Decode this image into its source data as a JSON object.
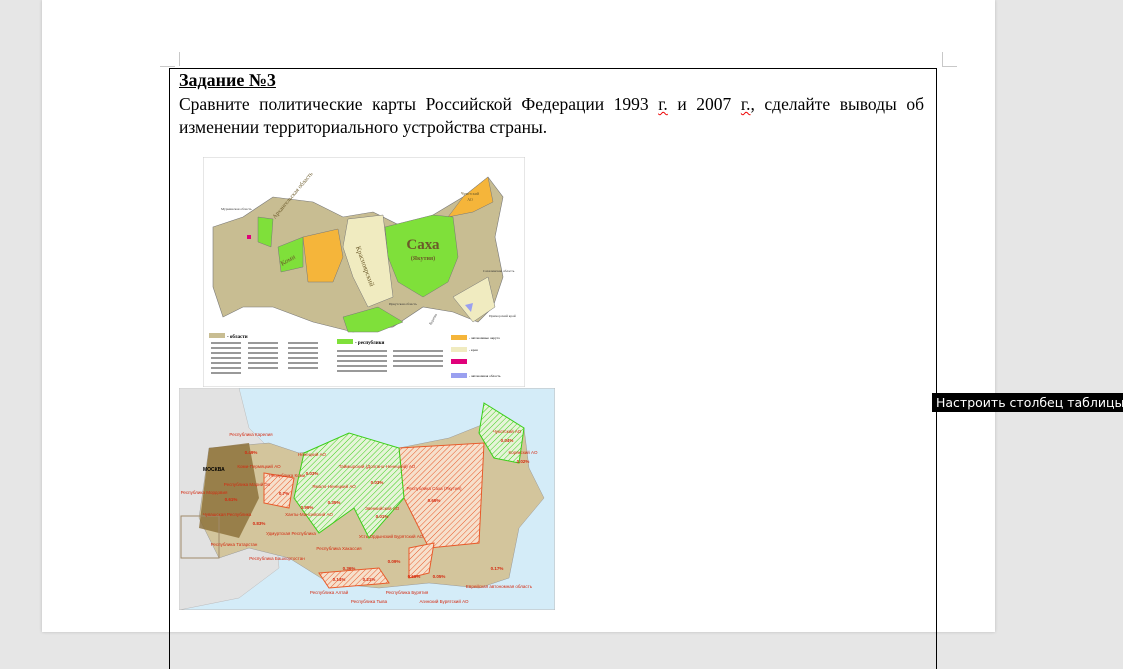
{
  "document": {
    "task_title": "Задание  №3",
    "task_text_1": "Сравните политические карты  Российской Федерации 1993  ",
    "g1": "г.",
    "task_text_2": " и 2007  ",
    "g2": "г.",
    "task_text_3": ", сделайте выводы об изменении территориального устройства  страны."
  },
  "map1993": {
    "labels": {
      "sakha": "Саха",
      "yakutia": "(Якутия)",
      "krasnoyarsk": "Красноярский",
      "krai": "край",
      "arkhangelsk": "Архангельская область",
      "komi": "Коми",
      "chukotka": "Чукотский",
      "ao": "АО",
      "murmansk": "Мурманская область",
      "irkutsk": "Иркутская область",
      "buryatia": "Бурятия",
      "primorsky": "Приморский край",
      "sakhalin": "Сахалинская область"
    },
    "legend": {
      "oblasti": "- области",
      "republics": "- республики",
      "aok": "- автономные округа",
      "krai": "- края",
      "ao": "- автономная область"
    },
    "colors": {
      "oblast": "#c8bd92",
      "republic": "#7fe03a",
      "okrug": "#f5b53a",
      "krai": "#f0ebc0",
      "ao": "#9aa0f0",
      "federal_city": "#e0007a"
    }
  },
  "map2007": {
    "labels": [
      {
        "name": "Республика Карелия",
        "value": "0.49%"
      },
      {
        "name": "Ненецкий АО",
        "value": "0.03%"
      },
      {
        "name": "Коми-Пермяцкий АО",
        "value": ""
      },
      {
        "name": "Республика Коми",
        "value": "0.7%"
      },
      {
        "name": "Таймырский (Долгано-Ненецкий) АО",
        "value": "0.03%"
      },
      {
        "name": "Ямало-Ненецкий АО",
        "value": "0.35%"
      },
      {
        "name": "Республика Саха (Якутия)",
        "value": "0.65%"
      },
      {
        "name": "Чукотский АО",
        "value": "0.04%"
      },
      {
        "name": "Корякский АО",
        "value": "0.02%"
      },
      {
        "name": "Ханты-Мансийский АО",
        "value": "0.99%"
      },
      {
        "name": "Эвенкийский АО",
        "value": "0.01%"
      },
      {
        "name": "Республика Хакассия",
        "value": "0.36%"
      },
      {
        "name": "Усть-Ордынский Бурятский АО",
        "value": "0.09%"
      },
      {
        "name": "Еврейская автономная область",
        "value": "0.17%"
      },
      {
        "name": "Республика Алтай",
        "value": "0.14%"
      },
      {
        "name": "Республика Тыва",
        "value": "0.21%"
      },
      {
        "name": "Республика Бурятия",
        "value": "0.68%"
      },
      {
        "name": "Агинский Бурятский АО",
        "value": "0.05%"
      },
      {
        "name": "Удмуртская Республика",
        "value": "0.83%"
      },
      {
        "name": "Республика Татарстан",
        "value": ""
      },
      {
        "name": "Республика Башкортостан",
        "value": ""
      },
      {
        "name": "Республика Мордовия",
        "value": "0.61%"
      },
      {
        "name": "Республика Марий Эл",
        "value": ""
      },
      {
        "name": "Чувашская Республика",
        "value": ""
      }
    ],
    "moscow": "МОСКВА",
    "colors": {
      "sea": "#d4ecf8",
      "land": "#d3c59c",
      "dark": "#8a6d36",
      "red": "#e85a2a",
      "green": "#3ccf1a"
    }
  },
  "tooltip": "Настроить столбец таблицы"
}
